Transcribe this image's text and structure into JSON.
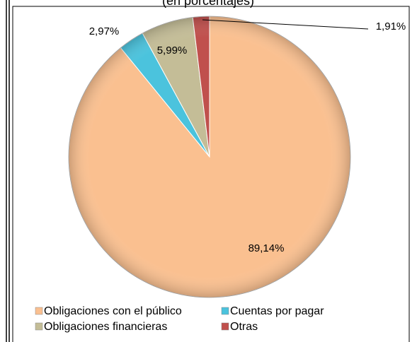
{
  "chart_data": {
    "type": "pie",
    "subtitle": "(en porcentajes)",
    "categories": [
      "Obligaciones con el público",
      "Cuentas por pagar",
      "Obligaciones financieras",
      "Otras"
    ],
    "values": [
      89.14,
      2.97,
      5.99,
      1.91
    ],
    "value_labels": [
      "89,14%",
      "2,97%",
      "5,99%",
      "1,91%"
    ],
    "colors": [
      "#FAC090",
      "#4BC3DD",
      "#C4BD97",
      "#C0504D"
    ]
  }
}
